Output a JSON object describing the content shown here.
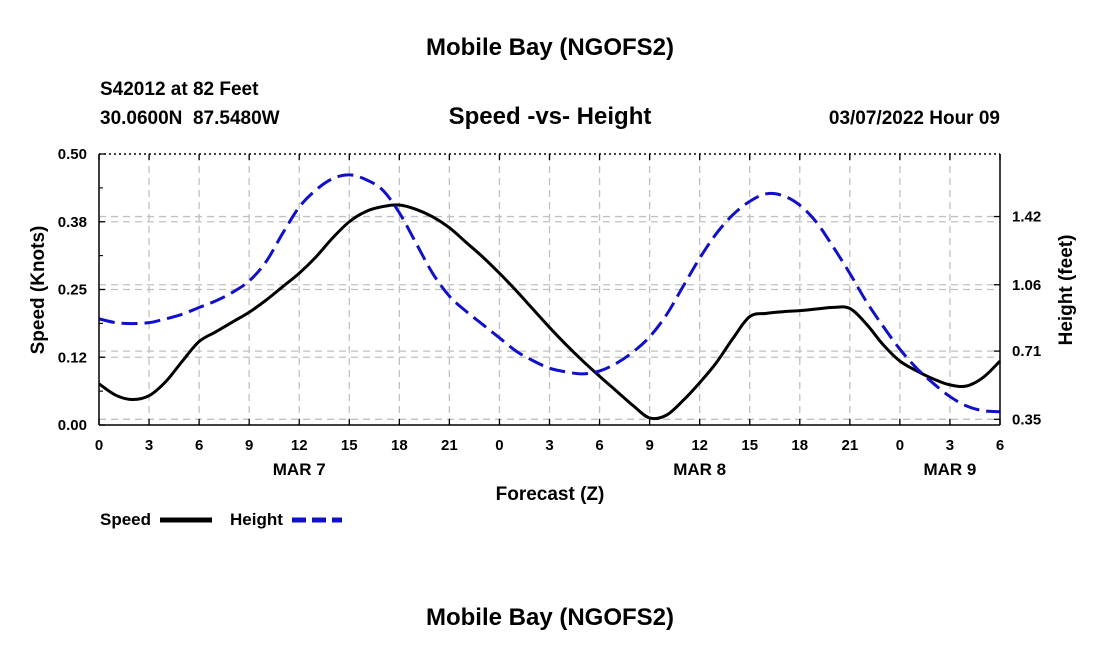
{
  "header": {
    "title": "Mobile Bay (NGOFS2)",
    "station_line": "S42012 at 82 Feet",
    "coords_line": "30.0600N  87.5480W",
    "chart_title": "Speed -vs- Height",
    "datetime": "03/07/2022 Hour 09"
  },
  "footer_title": "Mobile Bay (NGOFS2)",
  "colors": {
    "speed": "#000000",
    "height": "#1010c8",
    "grid": "#c0c0c0"
  },
  "chart_data": {
    "type": "line",
    "title": "Speed -vs- Height",
    "xlabel": "Forecast (Z)",
    "ylabel_left": "Speed (Knots)",
    "ylabel_right": "Height (feet)",
    "x_range_hours": [
      0,
      54
    ],
    "x_ticks": [
      {
        "h": 0,
        "label": "0"
      },
      {
        "h": 3,
        "label": "3"
      },
      {
        "h": 6,
        "label": "6"
      },
      {
        "h": 9,
        "label": "9"
      },
      {
        "h": 12,
        "label": "12"
      },
      {
        "h": 15,
        "label": "15"
      },
      {
        "h": 18,
        "label": "18"
      },
      {
        "h": 21,
        "label": "21"
      },
      {
        "h": 24,
        "label": "0"
      },
      {
        "h": 27,
        "label": "3"
      },
      {
        "h": 30,
        "label": "6"
      },
      {
        "h": 33,
        "label": "9"
      },
      {
        "h": 36,
        "label": "12"
      },
      {
        "h": 39,
        "label": "15"
      },
      {
        "h": 42,
        "label": "18"
      },
      {
        "h": 45,
        "label": "21"
      },
      {
        "h": 48,
        "label": "0"
      },
      {
        "h": 51,
        "label": "3"
      },
      {
        "h": 54,
        "label": "6"
      }
    ],
    "date_labels": [
      {
        "h": 12,
        "label": "MAR 7"
      },
      {
        "h": 36,
        "label": "MAR 8"
      },
      {
        "h": 51,
        "label": "MAR 9"
      }
    ],
    "y_left": {
      "range": [
        0,
        0.5
      ],
      "ticks": [
        {
          "v": 0.0,
          "label": "0.00"
        },
        {
          "v": 0.125,
          "label": "0.12"
        },
        {
          "v": 0.25,
          "label": "0.25"
        },
        {
          "v": 0.375,
          "label": "0.38"
        },
        {
          "v": 0.5,
          "label": "0.50"
        }
      ]
    },
    "y_right": {
      "range": [
        0.32,
        1.75
      ],
      "ticks": [
        {
          "v": 0.35,
          "label": "0.35"
        },
        {
          "v": 0.71,
          "label": "0.71"
        },
        {
          "v": 1.06,
          "label": "1.06"
        },
        {
          "v": 1.42,
          "label": "1.42"
        }
      ]
    },
    "grid": true,
    "legend_position": "bottom-left",
    "series": [
      {
        "name": "Speed",
        "axis": "left",
        "style": "solid",
        "points": [
          [
            0,
            0.076
          ],
          [
            1,
            0.055
          ],
          [
            2,
            0.047
          ],
          [
            3,
            0.054
          ],
          [
            4,
            0.08
          ],
          [
            5,
            0.118
          ],
          [
            6,
            0.154
          ],
          [
            7,
            0.172
          ],
          [
            8,
            0.19
          ],
          [
            9,
            0.208
          ],
          [
            10,
            0.23
          ],
          [
            11,
            0.255
          ],
          [
            12,
            0.28
          ],
          [
            13,
            0.31
          ],
          [
            14,
            0.345
          ],
          [
            15,
            0.375
          ],
          [
            16,
            0.394
          ],
          [
            17,
            0.403
          ],
          [
            18,
            0.406
          ],
          [
            19,
            0.398
          ],
          [
            20,
            0.384
          ],
          [
            21,
            0.364
          ],
          [
            22,
            0.337
          ],
          [
            23,
            0.31
          ],
          [
            24,
            0.28
          ],
          [
            25,
            0.248
          ],
          [
            26,
            0.214
          ],
          [
            27,
            0.18
          ],
          [
            28,
            0.148
          ],
          [
            29,
            0.118
          ],
          [
            30,
            0.09
          ],
          [
            31,
            0.063
          ],
          [
            32,
            0.036
          ],
          [
            33,
            0.013
          ],
          [
            34,
            0.018
          ],
          [
            35,
            0.045
          ],
          [
            36,
            0.078
          ],
          [
            37,
            0.115
          ],
          [
            38,
            0.16
          ],
          [
            39,
            0.2
          ],
          [
            40,
            0.206
          ],
          [
            41,
            0.209
          ],
          [
            42,
            0.211
          ],
          [
            43,
            0.214
          ],
          [
            44,
            0.217
          ],
          [
            45,
            0.215
          ],
          [
            46,
            0.186
          ],
          [
            47,
            0.148
          ],
          [
            48,
            0.118
          ],
          [
            49,
            0.1
          ],
          [
            50,
            0.085
          ],
          [
            51,
            0.074
          ],
          [
            52,
            0.072
          ],
          [
            53,
            0.088
          ],
          [
            54,
            0.118
          ]
        ]
      },
      {
        "name": "Height",
        "axis": "right",
        "style": "dashed",
        "points": [
          [
            0,
            0.88
          ],
          [
            1,
            0.86
          ],
          [
            2,
            0.855
          ],
          [
            3,
            0.86
          ],
          [
            4,
            0.88
          ],
          [
            5,
            0.905
          ],
          [
            6,
            0.94
          ],
          [
            7,
            0.975
          ],
          [
            8,
            1.02
          ],
          [
            9,
            1.08
          ],
          [
            10,
            1.18
          ],
          [
            11,
            1.33
          ],
          [
            12,
            1.47
          ],
          [
            13,
            1.56
          ],
          [
            14,
            1.62
          ],
          [
            15,
            1.64
          ],
          [
            16,
            1.615
          ],
          [
            17,
            1.56
          ],
          [
            18,
            1.44
          ],
          [
            19,
            1.28
          ],
          [
            20,
            1.12
          ],
          [
            21,
            1.0
          ],
          [
            22,
            0.92
          ],
          [
            23,
            0.85
          ],
          [
            24,
            0.78
          ],
          [
            25,
            0.71
          ],
          [
            26,
            0.66
          ],
          [
            27,
            0.62
          ],
          [
            28,
            0.6
          ],
          [
            29,
            0.59
          ],
          [
            30,
            0.605
          ],
          [
            31,
            0.645
          ],
          [
            32,
            0.705
          ],
          [
            33,
            0.785
          ],
          [
            34,
            0.9
          ],
          [
            35,
            1.05
          ],
          [
            36,
            1.2
          ],
          [
            37,
            1.33
          ],
          [
            38,
            1.43
          ],
          [
            39,
            1.5
          ],
          [
            40,
            1.54
          ],
          [
            41,
            1.53
          ],
          [
            42,
            1.48
          ],
          [
            43,
            1.39
          ],
          [
            44,
            1.26
          ],
          [
            45,
            1.12
          ],
          [
            46,
            0.97
          ],
          [
            47,
            0.84
          ],
          [
            48,
            0.72
          ],
          [
            49,
            0.62
          ],
          [
            50,
            0.54
          ],
          [
            51,
            0.47
          ],
          [
            52,
            0.42
          ],
          [
            53,
            0.395
          ],
          [
            54,
            0.39
          ]
        ]
      }
    ],
    "legend": [
      {
        "label": "Speed",
        "series": "Speed"
      },
      {
        "label": "Height",
        "series": "Height"
      }
    ]
  }
}
